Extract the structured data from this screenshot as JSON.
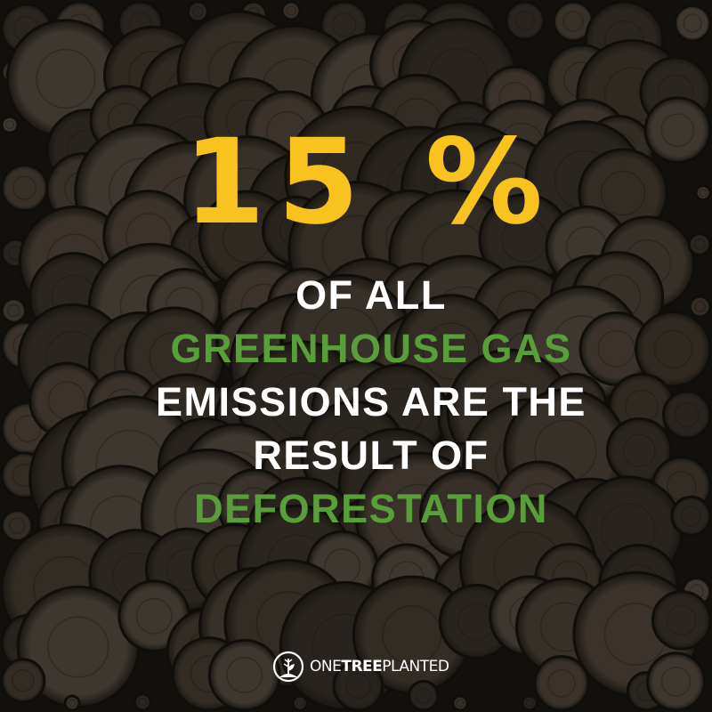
{
  "headline": {
    "value": "15 %",
    "color": "#F9C31F"
  },
  "lines": [
    {
      "text": "OF ALL",
      "color": "#FFFFFF"
    },
    {
      "text": "GREENHOUSE GAS",
      "color": "#5A9E3C"
    },
    {
      "text": "EMISSIONS ARE THE",
      "color": "#FFFFFF"
    },
    {
      "text": "RESULT OF",
      "color": "#FFFFFF"
    },
    {
      "text": "DEFORESTATION",
      "color": "#5A9E3C"
    }
  ],
  "logo": {
    "icon": "tree-sprout-circle-icon",
    "part1": "ONE",
    "part2": "TREE",
    "part3": "PLANTED"
  },
  "background": {
    "description_icon": "log-stack-image"
  }
}
